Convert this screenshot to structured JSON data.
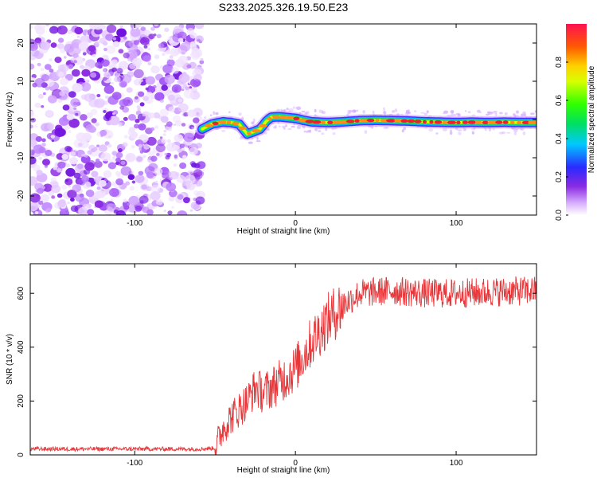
{
  "title": "S233.2025.326.19.50.E23",
  "chart_data": [
    {
      "type": "heatmap",
      "name": "spectrogram",
      "xlabel": "Height of straight line (km)",
      "ylabel": "Frequency (Hz)",
      "xlim": [
        -165,
        150
      ],
      "ylim": [
        -25,
        25
      ],
      "xticks": [
        -100,
        0,
        100
      ],
      "yticks": [
        -20,
        -10,
        0,
        10,
        20
      ],
      "noise_region_x": [
        -165,
        -58
      ],
      "colorbar": {
        "label": "Normalized spectral amplitude",
        "range": [
          0,
          1
        ],
        "ticks": [
          0.0,
          0.2,
          0.4,
          0.6,
          0.8
        ]
      },
      "ridge": {
        "x": [
          -58,
          -52,
          -45,
          -40,
          -35,
          -30,
          -26,
          -22,
          -18,
          -15,
          -10,
          -5,
          0,
          5,
          10,
          20,
          30,
          40,
          50,
          60,
          70,
          80,
          90,
          100,
          110,
          120,
          130,
          140,
          150
        ],
        "y": [
          -2.5,
          -1.2,
          -0.6,
          -0.8,
          -1.2,
          -3.8,
          -3.2,
          -2.5,
          -0.4,
          0.6,
          0.7,
          0.5,
          0.3,
          -0.2,
          -0.6,
          -0.8,
          -0.6,
          -0.3,
          -0.2,
          -0.3,
          -0.4,
          -0.6,
          -0.7,
          -0.8,
          -0.7,
          -0.8,
          -0.7,
          -0.8,
          -0.8
        ]
      }
    },
    {
      "type": "line",
      "name": "snr",
      "xlabel": "Height of straight line (km)",
      "ylabel": "SNR (10 * v/v)",
      "xlim": [
        -165,
        150
      ],
      "ylim": [
        0,
        710
      ],
      "xticks": [
        -100,
        0,
        100
      ],
      "yticks": [
        0,
        200,
        400,
        600
      ],
      "series": [
        {
          "name": "SNR",
          "color": "#e8373a",
          "trend_x": [
            -165,
            -60,
            -50,
            -45,
            -40,
            -30,
            -25,
            -20,
            -10,
            0,
            10,
            20,
            30,
            40,
            60,
            80,
            100,
            120,
            150
          ],
          "trend_y": [
            22,
            22,
            25,
            100,
            140,
            200,
            250,
            230,
            270,
            320,
            420,
            500,
            560,
            600,
            610,
            600,
            600,
            605,
            610
          ]
        }
      ]
    }
  ]
}
